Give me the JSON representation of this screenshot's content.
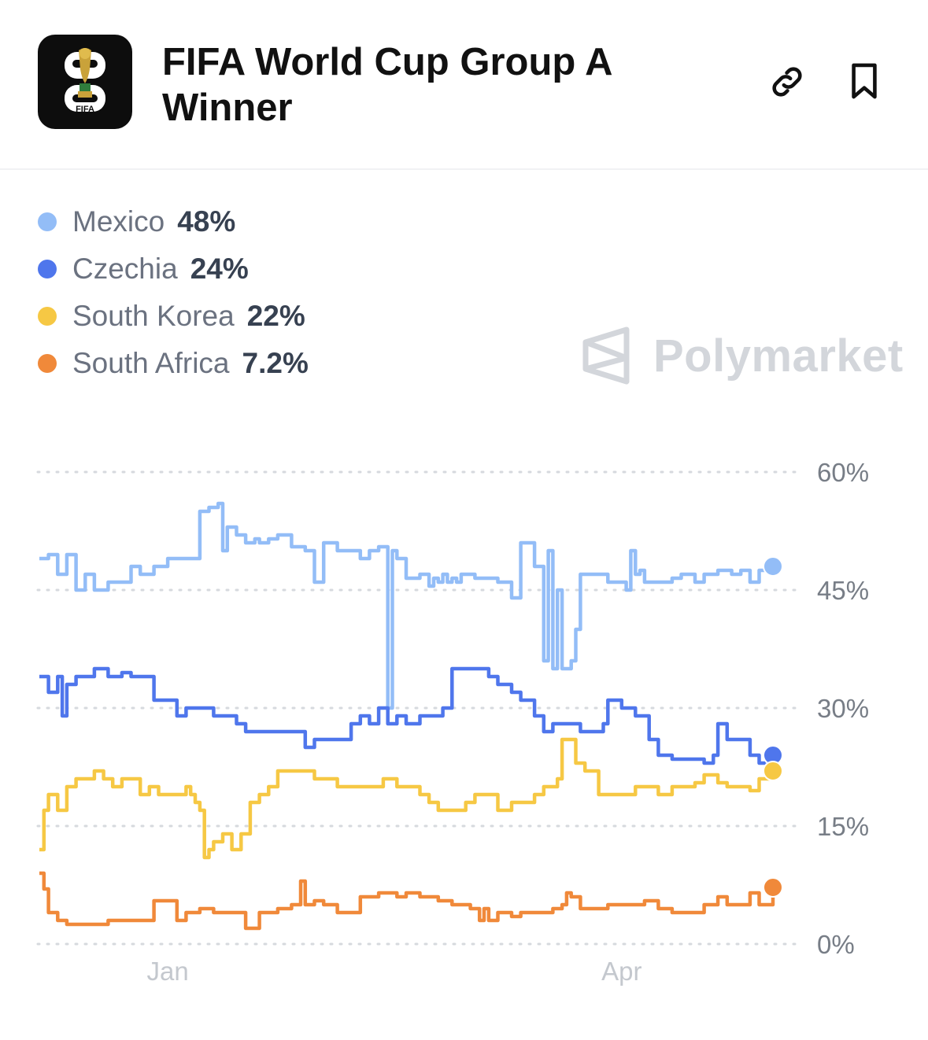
{
  "header": {
    "title": "FIFA World Cup Group A Winner",
    "logo_text": "FIFA"
  },
  "icons": {
    "logo": "world-cup-trophy-logo",
    "link": "link-icon",
    "bookmark": "bookmark-icon",
    "watermark": "polymarket-logo"
  },
  "watermark": {
    "text": "Polymarket"
  },
  "legend": [
    {
      "name": "Mexico",
      "value": "48%",
      "color": "#93bdf7"
    },
    {
      "name": "Czechia",
      "value": "24%",
      "color": "#4f76ec"
    },
    {
      "name": "South Korea",
      "value": "22%",
      "color": "#f6c844"
    },
    {
      "name": "South Africa",
      "value": "7.2%",
      "color": "#f0893a"
    }
  ],
  "chart_data": {
    "type": "line",
    "y_axis": {
      "range": [
        0,
        60
      ],
      "ticks": [
        0,
        15,
        30,
        45,
        60
      ],
      "tick_labels": [
        "0%",
        "15%",
        "30%",
        "45%",
        "60%"
      ],
      "position": "right",
      "grid": "dotted"
    },
    "x_axis": {
      "range": [
        0,
        160
      ],
      "tick_labels": [
        {
          "label": "Jan",
          "at": 28
        },
        {
          "label": "Apr",
          "at": 127
        }
      ]
    },
    "legend_placement": "top-left",
    "series": [
      {
        "name": "Mexico",
        "color": "#93bdf7",
        "last_value": 48,
        "x": [
          0,
          2,
          4,
          6,
          8,
          10,
          12,
          15,
          20,
          22,
          25,
          28,
          30,
          35,
          37,
          39,
          40,
          41,
          43,
          45,
          47,
          48,
          50,
          52,
          55,
          58,
          60,
          62,
          65,
          68,
          70,
          72,
          74,
          76,
          77,
          78,
          80,
          83,
          85,
          86,
          87,
          88,
          89,
          90,
          91,
          92,
          95,
          97,
          100,
          103,
          105,
          108,
          110,
          111,
          112,
          113,
          114,
          115,
          116,
          117,
          118,
          119,
          120,
          121,
          124,
          128,
          129,
          130,
          131,
          132,
          135,
          138,
          140,
          143,
          145,
          148,
          151,
          153,
          155,
          157,
          160
        ],
        "y": [
          49,
          49.5,
          47,
          49.5,
          45,
          47,
          45,
          46,
          48,
          47,
          48,
          49,
          49,
          55,
          55.5,
          56,
          50,
          53,
          52,
          51,
          51.5,
          51,
          51.5,
          52,
          50.5,
          50,
          46,
          51,
          50,
          50,
          49,
          50,
          50.5,
          30,
          50,
          49,
          46.5,
          47,
          45.5,
          46.5,
          46,
          47,
          46,
          46.5,
          46,
          47,
          46.5,
          46.5,
          46,
          44,
          51,
          48,
          36,
          50,
          35,
          45,
          35,
          35,
          36,
          40,
          47,
          47,
          47,
          47,
          46,
          45,
          50,
          47,
          47.5,
          46,
          46,
          46.5,
          47,
          46,
          47,
          47.5,
          47,
          47.5,
          46,
          47.5,
          48
        ]
      },
      {
        "name": "Czechia",
        "color": "#4f76ec",
        "last_value": 24,
        "x": [
          0,
          2,
          4,
          5,
          6,
          8,
          10,
          12,
          15,
          18,
          20,
          22,
          25,
          28,
          30,
          32,
          35,
          38,
          40,
          43,
          45,
          48,
          50,
          55,
          58,
          60,
          62,
          65,
          68,
          70,
          72,
          74,
          76,
          78,
          80,
          83,
          85,
          88,
          90,
          92,
          95,
          98,
          100,
          103,
          105,
          108,
          110,
          112,
          115,
          118,
          120,
          122,
          123,
          124,
          125,
          127,
          130,
          133,
          135,
          138,
          140,
          143,
          145,
          147,
          148,
          150,
          152,
          155,
          157,
          160
        ],
        "y": [
          34,
          32,
          34,
          29,
          33,
          34,
          34,
          35,
          34,
          34.5,
          34,
          34,
          31,
          31,
          29,
          30,
          30,
          29,
          29,
          28,
          27,
          27,
          27,
          27,
          25,
          26,
          26,
          26,
          28,
          29,
          28,
          30,
          28,
          29,
          28,
          29,
          29,
          30,
          35,
          35,
          35,
          34,
          33,
          32,
          31,
          29,
          27,
          28,
          28,
          27,
          27,
          27,
          28,
          31,
          31,
          30,
          29,
          26,
          24,
          23.5,
          23.5,
          23.5,
          23,
          24,
          28,
          26,
          26,
          24,
          23,
          23.5
        ]
      },
      {
        "name": "South Korea",
        "color": "#f6c844",
        "last_value": 22,
        "x": [
          0,
          1,
          2,
          4,
          6,
          8,
          10,
          12,
          14,
          16,
          18,
          20,
          22,
          24,
          25,
          26,
          28,
          30,
          32,
          33,
          34,
          35,
          36,
          37,
          38,
          39,
          40,
          42,
          44,
          46,
          48,
          50,
          52,
          55,
          58,
          60,
          62,
          65,
          68,
          70,
          72,
          75,
          78,
          80,
          82,
          83,
          84,
          85,
          87,
          90,
          93,
          95,
          100,
          103,
          105,
          108,
          110,
          112,
          113,
          114,
          115,
          117,
          119,
          120,
          122,
          124,
          126,
          128,
          130,
          133,
          135,
          138,
          140,
          143,
          145,
          148,
          150,
          152,
          155,
          157,
          160
        ],
        "y": [
          12,
          17,
          19,
          17,
          20,
          21,
          21,
          22,
          21,
          20,
          21,
          21,
          19,
          20,
          20,
          19,
          19,
          19,
          20,
          19,
          18,
          17,
          11,
          12,
          13,
          13,
          14,
          12,
          14,
          18,
          19,
          20,
          22,
          22,
          22,
          21,
          21,
          20,
          20,
          20,
          20,
          21,
          20,
          20,
          20,
          19,
          19,
          18,
          17,
          17,
          18,
          19,
          17,
          18,
          18,
          19,
          20,
          20,
          21,
          26,
          26,
          23,
          22,
          22,
          19,
          19,
          19,
          19,
          20,
          20,
          19,
          20,
          20,
          20.5,
          21.5,
          20.5,
          20,
          20,
          19.5,
          21,
          21.5
        ]
      },
      {
        "name": "South Africa",
        "color": "#f0893a",
        "last_value": 7.2,
        "x": [
          0,
          1,
          2,
          4,
          6,
          8,
          10,
          12,
          15,
          20,
          22,
          25,
          28,
          30,
          32,
          35,
          38,
          40,
          43,
          45,
          48,
          50,
          52,
          55,
          57,
          58,
          60,
          62,
          65,
          68,
          70,
          72,
          74,
          76,
          78,
          80,
          83,
          85,
          87,
          90,
          92,
          94,
          95,
          96,
          97,
          98,
          100,
          103,
          105,
          108,
          110,
          112,
          114,
          115,
          116,
          118,
          120,
          122,
          124,
          126,
          128,
          130,
          132,
          135,
          138,
          140,
          143,
          145,
          148,
          150,
          152,
          155,
          157,
          160
        ],
        "y": [
          9,
          7,
          4,
          3,
          2.5,
          2.5,
          2.5,
          2.5,
          3,
          3,
          3,
          5.5,
          5.5,
          3,
          4,
          4.5,
          4,
          4,
          4,
          2,
          4,
          4,
          4.5,
          5,
          8,
          5,
          5.5,
          5,
          4,
          4,
          6,
          6,
          6.5,
          6.5,
          6,
          6.5,
          6,
          6,
          5.5,
          5,
          5,
          4.5,
          4.5,
          3,
          4.5,
          3,
          4,
          3.5,
          4,
          4,
          4,
          4.5,
          5,
          6.5,
          6,
          4.5,
          4.5,
          4.5,
          5,
          5,
          5,
          5,
          5.5,
          4.5,
          4,
          4,
          4,
          5,
          6,
          5,
          5,
          6.5,
          5,
          7.2
        ]
      }
    ]
  }
}
